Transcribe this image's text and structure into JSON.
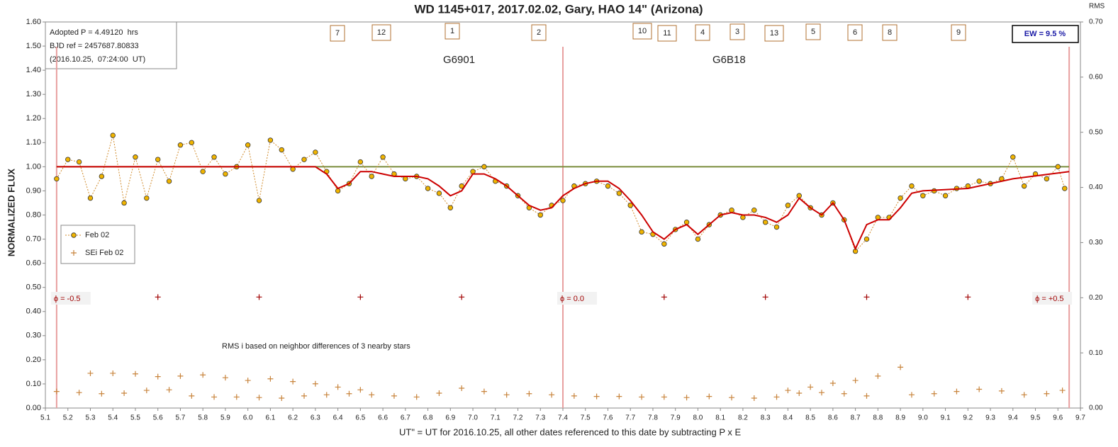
{
  "chart_data": {
    "type": "line",
    "title": "WD 1145+017, 2017.02.02, Gary, HAO 14\" (Arizona)",
    "x_label": "UT\" = UT for 2016.10.25, all other dates referenced to this date by subtracting P x E",
    "y_label": "NORMALIZED FLUX",
    "y2_label": "RMS",
    "xlim": [
      5.1,
      9.7
    ],
    "xticks": [
      5.1,
      5.2,
      5.3,
      5.4,
      5.5,
      5.6,
      5.7,
      5.8,
      5.9,
      {
        "value": 6,
        "label": "6.0"
      },
      6.1,
      6.2,
      6.3,
      6.4,
      6.5,
      6.6,
      6.7,
      6.8,
      6.9,
      {
        "value": 7,
        "label": "7.0"
      },
      7.1,
      7.2,
      7.3,
      7.4,
      7.5,
      7.6,
      7.7,
      7.8,
      7.9,
      {
        "value": 8,
        "label": "8.0"
      },
      8.1,
      8.2,
      8.3,
      8.4,
      8.5,
      8.6,
      8.7,
      8.8,
      8.9,
      {
        "value": 9,
        "label": "9.0"
      },
      9.1,
      9.2,
      9.3,
      9.4,
      9.5,
      9.6,
      9.7
    ],
    "ylim": [
      0,
      1.6
    ],
    "yticks": [
      {
        "value": 0,
        "label": "0.00"
      },
      {
        "value": 0.1,
        "label": "0.10"
      },
      {
        "value": 0.2,
        "label": "0.20"
      },
      {
        "value": 0.3,
        "label": "0.30"
      },
      {
        "value": 0.4,
        "label": "0.40"
      },
      {
        "value": 0.5,
        "label": "0.50"
      },
      {
        "value": 0.6,
        "label": "0.60"
      },
      {
        "value": 0.7,
        "label": "0.70"
      },
      {
        "value": 0.8,
        "label": "0.80"
      },
      {
        "value": 0.9,
        "label": "0.90"
      },
      {
        "value": 1,
        "label": "1.00"
      },
      {
        "value": 1.1,
        "label": "1.10"
      },
      {
        "value": 1.2,
        "label": "1.20"
      },
      {
        "value": 1.3,
        "label": "1.30"
      },
      {
        "value": 1.4,
        "label": "1.40"
      },
      {
        "value": 1.5,
        "label": "1.50"
      },
      {
        "value": 1.6,
        "label": "1.60"
      }
    ],
    "y2lim": [
      0,
      0.7
    ],
    "y2ticks": [
      {
        "value": 0,
        "label": "0.00"
      },
      {
        "value": 0.1,
        "label": "0.10"
      },
      {
        "value": 0.2,
        "label": "0.20"
      },
      {
        "value": 0.3,
        "label": "0.30"
      },
      {
        "value": 0.4,
        "label": "0.40"
      },
      {
        "value": 0.5,
        "label": "0.50"
      },
      {
        "value": 0.6,
        "label": "0.60"
      },
      {
        "value": 0.7,
        "label": "0.70"
      }
    ],
    "legend": "left",
    "series": [
      {
        "name": "Feb 02",
        "color": "#f0b400",
        "line_color": "#d08a2a",
        "x": [
          5.15,
          5.2,
          5.25,
          5.3,
          5.35,
          5.4,
          5.45,
          5.5,
          5.55,
          5.6,
          5.65,
          5.7,
          5.75,
          5.8,
          5.85,
          5.9,
          5.95,
          6.0,
          6.05,
          6.1,
          6.15,
          6.2,
          6.25,
          6.3,
          6.35,
          6.4,
          6.45,
          6.5,
          6.55,
          6.6,
          6.65,
          6.7,
          6.75,
          6.8,
          6.85,
          6.9,
          6.95,
          7.0,
          7.05,
          7.1,
          7.15,
          7.2,
          7.25,
          7.3,
          7.35,
          7.4,
          7.45,
          7.5,
          7.55,
          7.6,
          7.65,
          7.7,
          7.75,
          7.8,
          7.85,
          7.9,
          7.95,
          8.0,
          8.05,
          8.1,
          8.15,
          8.2,
          8.25,
          8.3,
          8.35,
          8.4,
          8.45,
          8.5,
          8.55,
          8.6,
          8.65,
          8.7,
          8.75,
          8.8,
          8.85,
          8.9,
          8.95,
          9.0,
          9.05,
          9.1,
          9.15,
          9.2,
          9.25,
          9.3,
          9.35,
          9.4,
          9.45,
          9.5,
          9.55,
          9.6,
          9.63
        ],
        "values": [
          0.95,
          1.03,
          1.02,
          0.87,
          0.96,
          1.13,
          0.85,
          1.04,
          0.87,
          1.03,
          0.94,
          1.09,
          1.1,
          0.98,
          1.04,
          0.97,
          1.0,
          1.09,
          0.86,
          1.11,
          1.07,
          0.99,
          1.03,
          1.06,
          0.98,
          0.9,
          0.93,
          1.02,
          0.96,
          1.04,
          0.97,
          0.95,
          0.96,
          0.91,
          0.89,
          0.83,
          0.92,
          0.98,
          1.0,
          0.94,
          0.92,
          0.88,
          0.83,
          0.8,
          0.84,
          0.86,
          0.92,
          0.93,
          0.94,
          0.92,
          0.89,
          0.84,
          0.73,
          0.72,
          0.68,
          0.74,
          0.77,
          0.7,
          0.76,
          0.8,
          0.82,
          0.79,
          0.82,
          0.77,
          0.75,
          0.84,
          0.88,
          0.83,
          0.8,
          0.85,
          0.78,
          0.65,
          0.7,
          0.79,
          0.79,
          0.87,
          0.92,
          0.88,
          0.9,
          0.88,
          0.91,
          0.92,
          0.94,
          0.93,
          0.95,
          1.04,
          0.92,
          0.97,
          0.95,
          1.0,
          0.91
        ]
      },
      {
        "name": "SEi Feb 02",
        "color": "#c8843c",
        "axis": "y2",
        "x": [
          5.15,
          5.25,
          5.35,
          5.45,
          5.55,
          5.65,
          5.75,
          5.85,
          5.95,
          6.05,
          6.15,
          6.25,
          6.35,
          6.45,
          6.55,
          6.65,
          6.75,
          6.85,
          6.95,
          7.05,
          7.15,
          7.25,
          7.35,
          7.45,
          7.55,
          7.65,
          7.75,
          7.85,
          7.95,
          8.05,
          8.15,
          8.25,
          8.35,
          8.45,
          8.55,
          8.65,
          8.75,
          8.95,
          9.05,
          9.15,
          9.25,
          9.35,
          9.45,
          9.55,
          9.62,
          5.3,
          5.4,
          5.5,
          5.6,
          5.7,
          5.8,
          5.9,
          6.0,
          6.1,
          6.2,
          6.3,
          6.4,
          6.5,
          8.4,
          8.5,
          8.6,
          8.7,
          8.8,
          8.9
        ],
        "values": [
          0.03,
          0.028,
          0.026,
          0.027,
          0.032,
          0.033,
          0.022,
          0.02,
          0.02,
          0.019,
          0.018,
          0.022,
          0.024,
          0.026,
          0.024,
          0.022,
          0.02,
          0.027,
          0.036,
          0.03,
          0.024,
          0.026,
          0.024,
          0.022,
          0.021,
          0.021,
          0.02,
          0.02,
          0.019,
          0.021,
          0.019,
          0.018,
          0.02,
          0.027,
          0.028,
          0.026,
          0.022,
          0.024,
          0.026,
          0.03,
          0.034,
          0.031,
          0.024,
          0.026,
          0.032,
          0.063,
          0.063,
          0.062,
          0.057,
          0.058,
          0.06,
          0.055,
          0.05,
          0.053,
          0.048,
          0.044,
          0.038,
          0.033,
          0.032,
          0.038,
          0.045,
          0.05,
          0.058,
          0.074
        ]
      }
    ],
    "fit": {
      "color": "#cc0000",
      "x": [
        5.15,
        6.3,
        6.35,
        6.4,
        6.45,
        6.5,
        6.55,
        6.6,
        6.65,
        6.7,
        6.75,
        6.8,
        6.85,
        6.9,
        6.95,
        7.0,
        7.05,
        7.1,
        7.15,
        7.2,
        7.25,
        7.3,
        7.35,
        7.4,
        7.45,
        7.5,
        7.55,
        7.6,
        7.65,
        7.7,
        7.75,
        7.8,
        7.85,
        7.9,
        7.95,
        8.0,
        8.05,
        8.1,
        8.15,
        8.2,
        8.25,
        8.3,
        8.35,
        8.4,
        8.45,
        8.5,
        8.55,
        8.6,
        8.65,
        8.7,
        8.75,
        8.8,
        8.85,
        8.9,
        8.95,
        9.0,
        9.2,
        9.4,
        9.65
      ],
      "values": [
        1.0,
        1.0,
        0.97,
        0.91,
        0.93,
        0.98,
        0.98,
        0.97,
        0.96,
        0.96,
        0.96,
        0.95,
        0.92,
        0.88,
        0.9,
        0.97,
        0.97,
        0.95,
        0.92,
        0.88,
        0.84,
        0.82,
        0.83,
        0.88,
        0.91,
        0.93,
        0.94,
        0.94,
        0.91,
        0.86,
        0.8,
        0.73,
        0.7,
        0.74,
        0.76,
        0.72,
        0.76,
        0.8,
        0.81,
        0.8,
        0.8,
        0.79,
        0.77,
        0.8,
        0.87,
        0.83,
        0.8,
        0.85,
        0.78,
        0.66,
        0.76,
        0.78,
        0.78,
        0.83,
        0.89,
        0.9,
        0.91,
        0.95,
        0.98
      ]
    },
    "baseline": {
      "value": 1.0,
      "color": "#7a8c3c"
    },
    "phase_lines": [
      {
        "x": 5.15,
        "label": "ϕ = -0.5"
      },
      {
        "x": 7.4,
        "label": "ϕ = 0.0"
      },
      {
        "x": 9.65,
        "label": "ϕ = +0.5"
      }
    ],
    "phase_ticks": {
      "x": [
        5.6,
        6.05,
        6.5,
        6.95,
        7.85,
        8.3,
        8.75,
        9.2
      ],
      "y": 0.46
    },
    "dip_labels": [
      "7",
      "12",
      "1",
      "2",
      "10",
      "11",
      "4",
      "3",
      "13",
      "5",
      "6",
      "8",
      "9"
    ],
    "group_labels": [
      "G6901",
      "G6B18"
    ],
    "info_box": [
      "Adopted P = 4.49120  hrs",
      "BJD ref = 2457687.80833",
      "(2016.10.25,  07:24:00  UT)"
    ],
    "ew_label": "EW = 9.5 %",
    "note": "RMS i based on neighbor differences of 3 nearby stars"
  }
}
